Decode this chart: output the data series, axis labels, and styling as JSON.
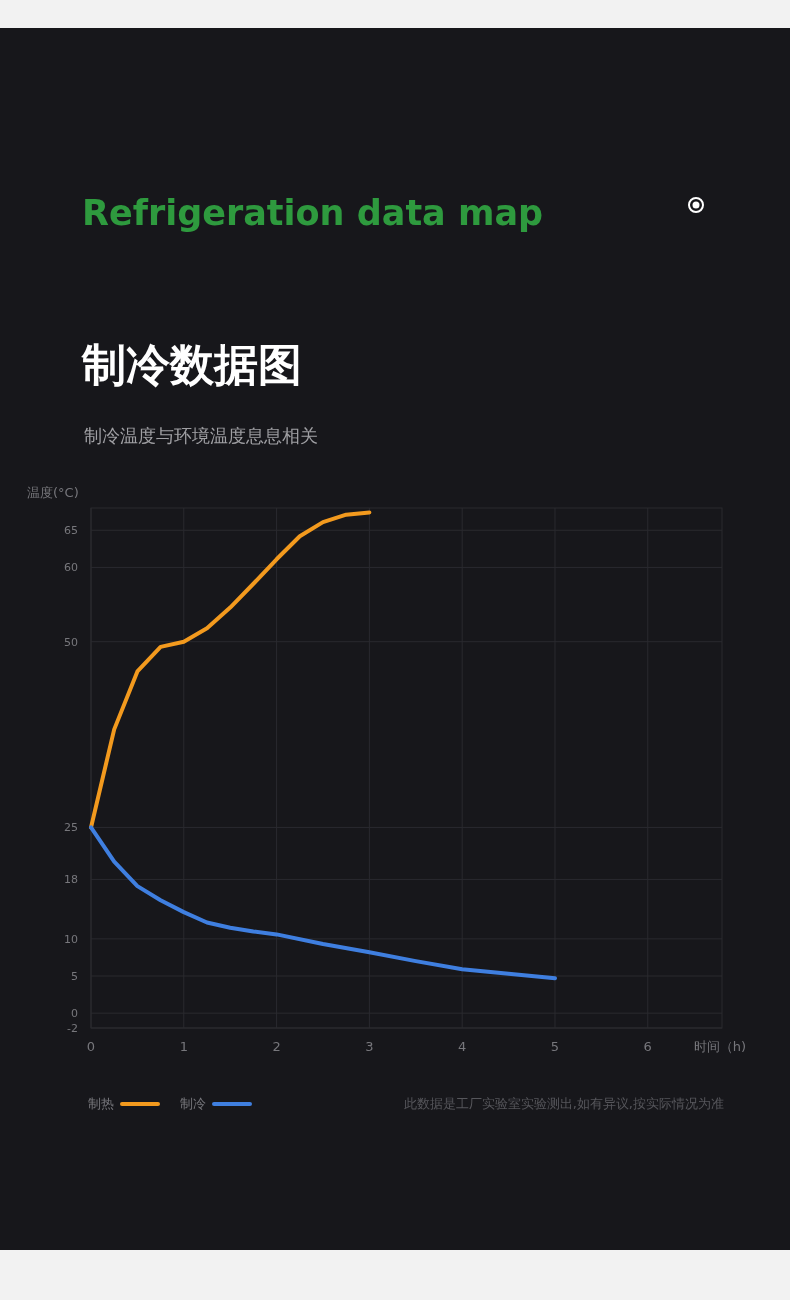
{
  "chart_data": {
    "type": "line",
    "title": "Refrigeration data map",
    "subtitle": "制冷数据图",
    "annotations": [
      "制冷温度与环境温度息息相关",
      "此数据是工厂实验室实验测出,如有异议,按实际情况为准"
    ],
    "xlabel": "时间（h)",
    "ylabel": "温度(°C)",
    "xlim": [
      0,
      6.8
    ],
    "xticks": [
      0,
      1,
      2,
      3,
      4,
      5,
      6
    ],
    "ylim": [
      -2,
      68
    ],
    "yticks": [
      65,
      60,
      50,
      25,
      18,
      10,
      5,
      0,
      -2
    ],
    "grid": true,
    "legend": "bottom left",
    "series": [
      {
        "name": "制热",
        "color": "#f39a1e",
        "x": [
          0,
          0.25,
          0.5,
          0.75,
          1,
          1.25,
          1.5,
          1.75,
          2,
          2.25,
          2.5,
          2.75,
          3
        ],
        "values": [
          25,
          38.2,
          46,
          49.3,
          50,
          51.8,
          54.6,
          57.8,
          61.1,
          64.2,
          66.1,
          67.1,
          67.4
        ]
      },
      {
        "name": "制冷",
        "color": "#3f7fe0",
        "x": [
          0,
          0.25,
          0.5,
          0.75,
          1,
          1.25,
          1.5,
          1.75,
          2,
          2.5,
          3,
          3.5,
          4,
          4.5,
          5
        ],
        "values": [
          25,
          20.4,
          17.1,
          15.2,
          13.6,
          12.2,
          11.5,
          11.0,
          10.6,
          9.3,
          8.2,
          7.0,
          5.9,
          5.3,
          4.7
        ]
      }
    ]
  }
}
